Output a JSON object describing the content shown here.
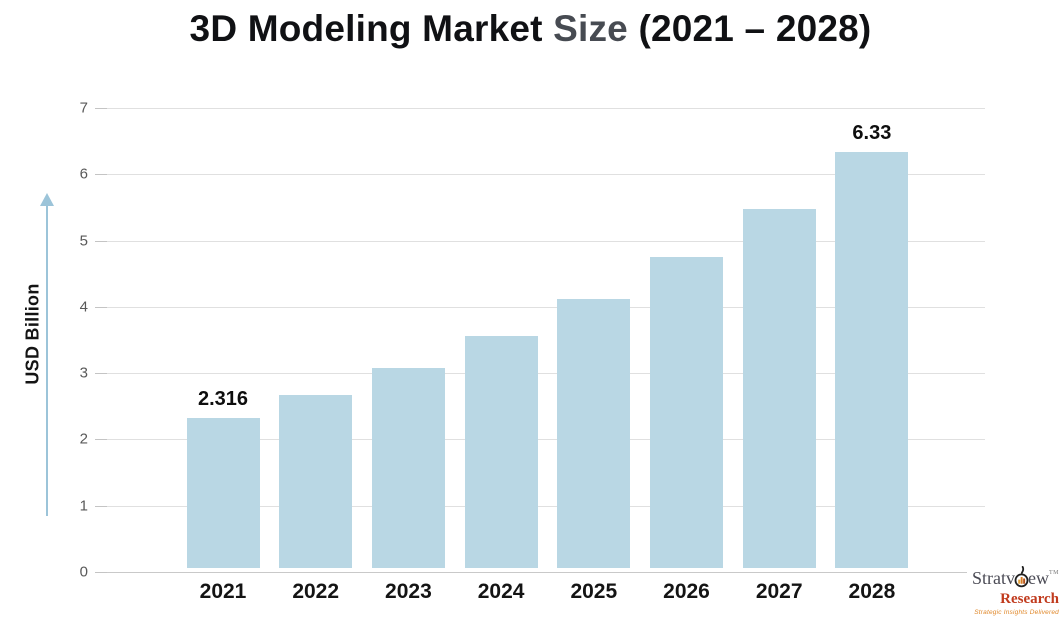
{
  "title": {
    "part1": "3D Modeling Market ",
    "part2": "Size",
    "part3": " (2021 – 2028)"
  },
  "chart_data": {
    "type": "bar",
    "title": "3D Modeling Market Size (2021 – 2028)",
    "categories": [
      "2021",
      "2022",
      "2023",
      "2024",
      "2025",
      "2026",
      "2027",
      "2028"
    ],
    "values": [
      2.316,
      2.67,
      3.08,
      3.56,
      4.12,
      4.75,
      5.48,
      6.33
    ],
    "data_labels": [
      "2.316",
      "",
      "",
      "",
      "",
      "",
      "",
      "6.33"
    ],
    "xlabel": "",
    "ylabel": "USD Billion",
    "ylim": [
      0,
      7
    ],
    "yticks": [
      0,
      1,
      2,
      3,
      4,
      5,
      6,
      7
    ],
    "grid": true,
    "legend": "none",
    "bar_color": "#b9d7e4"
  },
  "colors": {
    "bar": "#b9d7e4",
    "arrow": "#9cc4d9",
    "title_accent_gray": "#474b52",
    "gridline": "#e0e0e0",
    "tick_text": "#595959",
    "brand_name_gray": "#4b4b55",
    "brand_research_red": "#c13b1e",
    "brand_tagline_orange": "#e0882a"
  },
  "branding": {
    "name_pre": "Stratv",
    "name_post": "ew",
    "tm": "TM",
    "sub": "Research",
    "tagline": "Strategic Insights Delivered"
  }
}
